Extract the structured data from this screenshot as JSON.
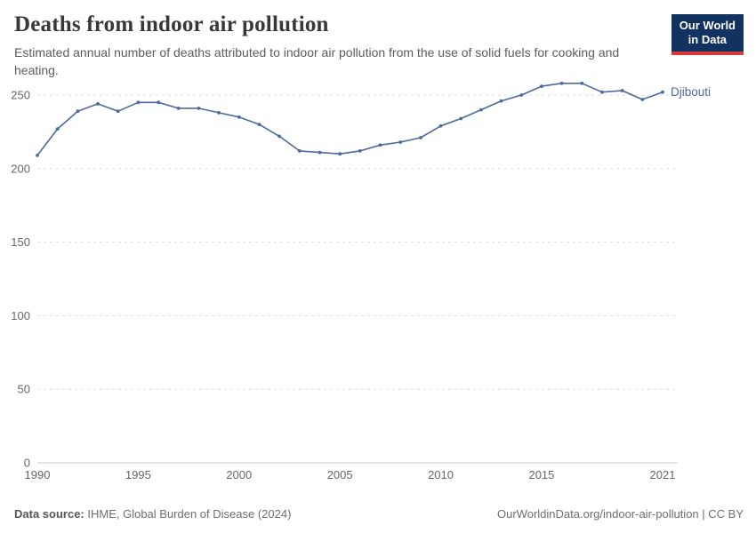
{
  "header": {
    "title": "Deaths from indoor air pollution",
    "subtitle": "Estimated annual number of deaths attributed to indoor air pollution from the use of solid fuels for cooking and heating.",
    "logo": {
      "line1": "Our World",
      "line2": "in Data"
    }
  },
  "chart_data": {
    "type": "line",
    "title": "Deaths from indoor air pollution",
    "x": [
      1990,
      1991,
      1992,
      1993,
      1994,
      1995,
      1996,
      1997,
      1998,
      1999,
      2000,
      2001,
      2002,
      2003,
      2004,
      2005,
      2006,
      2007,
      2008,
      2009,
      2010,
      2011,
      2012,
      2013,
      2014,
      2015,
      2016,
      2017,
      2018,
      2019,
      2020,
      2021
    ],
    "series": [
      {
        "name": "Djibouti",
        "color": "#4C6A9C",
        "values": [
          209,
          227,
          239,
          244,
          239,
          245,
          245,
          241,
          241,
          238,
          235,
          230,
          222,
          212,
          211,
          210,
          212,
          216,
          218,
          221,
          229,
          234,
          240,
          246,
          250,
          256,
          258,
          258,
          252,
          253,
          247,
          252
        ]
      }
    ],
    "x_ticks": [
      1990,
      1995,
      2000,
      2005,
      2010,
      2015,
      2021
    ],
    "y_ticks": [
      0,
      50,
      100,
      150,
      200,
      250
    ],
    "xlim": [
      1990,
      2021
    ],
    "ylim": [
      0,
      261
    ],
    "grid": "horizontal-dashed",
    "legend_position": "end-of-line"
  },
  "footer": {
    "source_label": "Data source:",
    "source_text": " IHME, Global Burden of Disease (2024)",
    "credit": "OurWorldinData.org/indoor-air-pollution | CC BY"
  },
  "colors": {
    "line": "#4C6A9C",
    "grid": "#dddddd",
    "axis": "#c8c8c8",
    "tick_text": "#666666",
    "logo_bg": "#12335f",
    "logo_accent": "#d73a3a"
  }
}
